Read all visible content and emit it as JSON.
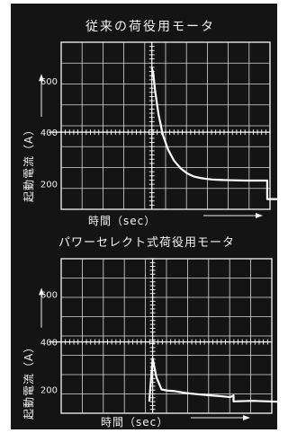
{
  "chart_data": [
    {
      "type": "line",
      "title": "従来の荷役用モータ",
      "xlabel": "時間（sec）",
      "ylabel": "起動電流（A）",
      "ylim": [
        100,
        750
      ],
      "yticks": [
        200,
        400,
        600
      ],
      "grid": true,
      "series": [
        {
          "x": [
            0,
            0.12,
            0.3,
            0.6,
            1.0,
            1.5,
            2.0,
            2.6,
            3.2,
            3.8,
            4.4,
            5.0,
            5.5,
            6.0,
            6.5,
            7.5,
            8.5,
            9.8,
            10.5,
            10.5,
            11.5
          ],
          "y": [
            650,
            630,
            560,
            470,
            390,
            330,
            290,
            260,
            240,
            228,
            222,
            218,
            216,
            215,
            214,
            213,
            212,
            212,
            212,
            140,
            140
          ]
        }
      ]
    },
    {
      "type": "line",
      "title": "パワーセレクト式荷役用モータ",
      "xlabel": "時間（sec）",
      "ylabel": "起動電流（A）",
      "ylim": [
        100,
        750
      ],
      "yticks": [
        200,
        400,
        600
      ],
      "grid": true,
      "series": [
        {
          "x": [
            -0.3,
            0,
            0.35,
            0.8,
            1.4,
            2.0,
            3.0,
            4.0,
            5.0,
            6.0,
            7.0,
            7.3,
            7.3,
            9.0,
            10.5,
            11.6
          ],
          "y": [
            150,
            330,
            250,
            200,
            195,
            193,
            185,
            180,
            176,
            172,
            168,
            175,
            150,
            152,
            150,
            148
          ]
        }
      ]
    }
  ]
}
